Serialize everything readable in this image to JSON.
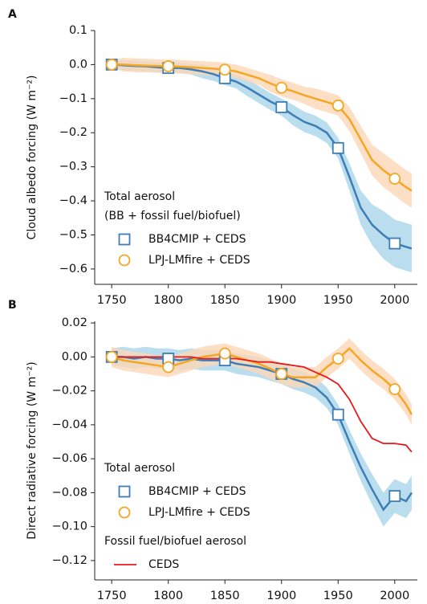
{
  "chart_data": [
    {
      "type": "line",
      "label": "A",
      "ylabel": "Cloud albedo forcing (W m⁻²)",
      "x": [
        1750,
        1760,
        1770,
        1780,
        1790,
        1800,
        1810,
        1820,
        1830,
        1840,
        1850,
        1860,
        1870,
        1880,
        1890,
        1900,
        1910,
        1920,
        1930,
        1940,
        1950,
        1960,
        1970,
        1980,
        1990,
        2000,
        2010,
        2015
      ],
      "xlim": [
        1735,
        2020
      ],
      "xticks": [
        1750,
        1800,
        1850,
        1900,
        1950,
        2000
      ],
      "ylim": [
        -0.645,
        0.1
      ],
      "yticks": [
        0.1,
        {
          "value": 0,
          "label": "0.0"
        },
        {
          "value": -0.1,
          "label": "−0.1"
        },
        {
          "value": -0.2,
          "label": "−0.2"
        },
        {
          "value": -0.3,
          "label": "−0.3"
        },
        {
          "value": -0.4,
          "label": "−0.4"
        },
        {
          "value": -0.5,
          "label": "−0.5"
        },
        {
          "value": -0.6,
          "label": "−0.6"
        }
      ],
      "series": [
        {
          "name": "BB4CMIP + CEDS",
          "legend_group": [
            "Total aerosol",
            "(BB + fossil fuel/biofuel)"
          ],
          "color": "#3f7db6",
          "band_color": "#a9d6e8",
          "marker": "square",
          "markevery": 5,
          "values": [
            0,
            -0.002,
            -0.004,
            -0.005,
            -0.008,
            -0.01,
            -0.01,
            -0.014,
            -0.02,
            -0.028,
            -0.04,
            -0.05,
            -0.068,
            -0.088,
            -0.108,
            -0.125,
            -0.148,
            -0.168,
            -0.18,
            -0.2,
            -0.245,
            -0.33,
            -0.42,
            -0.47,
            -0.5,
            -0.525,
            -0.535,
            -0.54
          ],
          "lower": [
            -0.01,
            -0.017,
            -0.019,
            -0.02,
            -0.023,
            -0.025,
            -0.025,
            -0.029,
            -0.04,
            -0.048,
            -0.06,
            -0.07,
            -0.093,
            -0.113,
            -0.133,
            -0.15,
            -0.178,
            -0.198,
            -0.21,
            -0.23,
            -0.275,
            -0.37,
            -0.47,
            -0.53,
            -0.57,
            -0.595,
            -0.605,
            -0.61
          ],
          "upper": [
            0.01,
            0.013,
            0.011,
            0.01,
            0.007,
            0.005,
            0.005,
            0.001,
            0,
            -0.008,
            -0.02,
            -0.03,
            -0.043,
            -0.063,
            -0.083,
            -0.1,
            -0.118,
            -0.138,
            -0.15,
            -0.17,
            -0.215,
            -0.29,
            -0.37,
            -0.41,
            -0.43,
            -0.455,
            -0.465,
            -0.47
          ]
        },
        {
          "name": "LPJ-LMfire + CEDS",
          "legend_group": [
            "Total aerosol",
            "(BB + fossil fuel/biofuel)"
          ],
          "color": "#f5a623",
          "band_color": "#fcd7b6",
          "marker": "circle",
          "markevery": 5,
          "values": [
            0,
            0,
            -0.002,
            -0.003,
            -0.004,
            -0.005,
            -0.006,
            -0.008,
            -0.01,
            -0.012,
            -0.015,
            -0.02,
            -0.03,
            -0.04,
            -0.055,
            -0.068,
            -0.078,
            -0.09,
            -0.1,
            -0.11,
            -0.12,
            -0.16,
            -0.22,
            -0.28,
            -0.31,
            -0.335,
            -0.36,
            -0.37
          ],
          "lower": [
            -0.01,
            -0.02,
            -0.022,
            -0.023,
            -0.024,
            -0.025,
            -0.026,
            -0.028,
            -0.03,
            -0.032,
            -0.035,
            -0.04,
            -0.05,
            -0.06,
            -0.08,
            -0.093,
            -0.103,
            -0.115,
            -0.13,
            -0.14,
            -0.15,
            -0.195,
            -0.26,
            -0.325,
            -0.36,
            -0.385,
            -0.41,
            -0.42
          ],
          "upper": [
            0.01,
            0.02,
            0.018,
            0.017,
            0.016,
            0.015,
            0.014,
            0.012,
            0.01,
            0.008,
            0.005,
            0,
            -0.01,
            -0.02,
            -0.03,
            -0.043,
            -0.053,
            -0.065,
            -0.07,
            -0.08,
            -0.09,
            -0.125,
            -0.18,
            -0.235,
            -0.26,
            -0.285,
            -0.31,
            -0.32
          ]
        }
      ]
    },
    {
      "type": "line",
      "label": "B",
      "ylabel": "Direct radiative forcing (W m⁻²)",
      "x": [
        1750,
        1760,
        1770,
        1780,
        1790,
        1800,
        1810,
        1820,
        1830,
        1840,
        1850,
        1860,
        1870,
        1880,
        1890,
        1900,
        1910,
        1920,
        1930,
        1940,
        1950,
        1960,
        1970,
        1980,
        1990,
        2000,
        2010,
        2015
      ],
      "xlim": [
        1735,
        2020
      ],
      "xticks": [
        1750,
        1800,
        1850,
        1900,
        1950,
        2000
      ],
      "ylim": [
        -0.1314,
        0.021
      ],
      "yticks": [
        0.02,
        {
          "value": 0,
          "label": "0.00"
        },
        {
          "value": -0.02,
          "label": "−0.02"
        },
        {
          "value": -0.04,
          "label": "−0.04"
        },
        {
          "value": -0.06,
          "label": "−0.06"
        },
        {
          "value": -0.08,
          "label": "−0.08"
        },
        {
          "value": -0.1,
          "label": "−0.10"
        },
        {
          "value": -0.12,
          "label": "−0.12"
        }
      ],
      "series": [
        {
          "name": "BB4CMIP + CEDS",
          "legend_group": [
            "Total aerosol"
          ],
          "color": "#3f7db6",
          "band_color": "#a9d6e8",
          "marker": "square",
          "markevery": 5,
          "values": [
            0,
            0,
            -0.001,
            0,
            -0.001,
            -0.001,
            -0.002,
            -0.001,
            -0.002,
            -0.002,
            -0.002,
            -0.004,
            -0.005,
            -0.006,
            -0.008,
            -0.01,
            -0.013,
            -0.015,
            -0.018,
            -0.024,
            -0.034,
            -0.05,
            -0.065,
            -0.078,
            -0.09,
            -0.082,
            -0.085,
            -0.08
          ],
          "lower": [
            -0.005,
            -0.006,
            -0.007,
            -0.006,
            -0.007,
            -0.007,
            -0.008,
            -0.007,
            -0.008,
            -0.008,
            -0.008,
            -0.01,
            -0.011,
            -0.012,
            -0.014,
            -0.016,
            -0.019,
            -0.021,
            -0.024,
            -0.03,
            -0.04,
            -0.057,
            -0.073,
            -0.087,
            -0.1,
            -0.092,
            -0.095,
            -0.09
          ],
          "upper": [
            0.005,
            0.006,
            0.005,
            0.006,
            0.005,
            0.005,
            0.004,
            0.005,
            0.004,
            0.004,
            0.004,
            0.002,
            0.001,
            0,
            -0.002,
            -0.004,
            -0.007,
            -0.009,
            -0.012,
            -0.018,
            -0.028,
            -0.043,
            -0.057,
            -0.069,
            -0.08,
            -0.072,
            -0.075,
            -0.07
          ]
        },
        {
          "name": "LPJ-LMfire + CEDS",
          "legend_group": [
            "Total aerosol"
          ],
          "color": "#f5a623",
          "band_color": "#fcd7b6",
          "marker": "circle",
          "markevery": 5,
          "values": [
            0,
            -0.002,
            -0.003,
            -0.004,
            -0.005,
            -0.006,
            -0.004,
            -0.002,
            0,
            0.001,
            0.002,
            0,
            -0.002,
            -0.004,
            -0.007,
            -0.01,
            -0.012,
            -0.012,
            -0.012,
            -0.006,
            -0.001,
            0.005,
            -0.002,
            -0.008,
            -0.013,
            -0.019,
            -0.028,
            -0.034
          ],
          "lower": [
            -0.006,
            -0.008,
            -0.009,
            -0.01,
            -0.011,
            -0.012,
            -0.01,
            -0.008,
            -0.006,
            -0.005,
            -0.004,
            -0.006,
            -0.008,
            -0.01,
            -0.013,
            -0.016,
            -0.018,
            -0.018,
            -0.018,
            -0.012,
            -0.007,
            -0.001,
            -0.008,
            -0.014,
            -0.019,
            -0.025,
            -0.034,
            -0.04
          ],
          "upper": [
            0.006,
            0.004,
            0.003,
            0.002,
            0.001,
            0,
            0.002,
            0.004,
            0.006,
            0.007,
            0.008,
            0.006,
            0.004,
            0.002,
            -0.001,
            -0.004,
            -0.006,
            -0.006,
            -0.006,
            0,
            0.005,
            0.011,
            0.004,
            -0.002,
            -0.007,
            -0.013,
            -0.022,
            -0.028
          ]
        },
        {
          "name": "CEDS",
          "legend_group": [
            "Fossil fuel/biofuel aerosol"
          ],
          "color": "#e8191c",
          "values": [
            0,
            0,
            0,
            0,
            0,
            0,
            0,
            0,
            -0.001,
            -0.001,
            -0.001,
            -0.001,
            -0.002,
            -0.003,
            -0.003,
            -0.004,
            -0.005,
            -0.006,
            -0.009,
            -0.012,
            -0.016,
            -0.025,
            -0.038,
            -0.048,
            -0.051,
            -0.051,
            -0.052,
            -0.056
          ]
        }
      ]
    }
  ]
}
